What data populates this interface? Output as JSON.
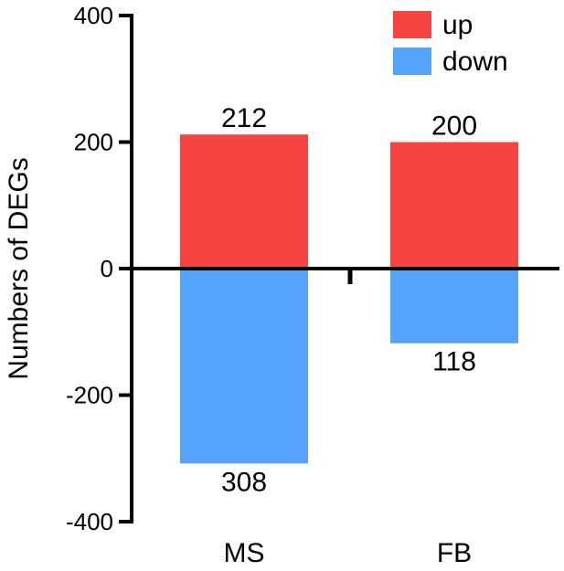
{
  "chart_data": {
    "type": "bar",
    "categories": [
      "MS",
      "FB"
    ],
    "series": [
      {
        "name": "up",
        "values": [
          212,
          200
        ],
        "labels": [
          "212",
          "200"
        ],
        "color": "#f84343"
      },
      {
        "name": "down",
        "values": [
          -308,
          -118
        ],
        "labels": [
          "308",
          "118"
        ],
        "color": "#55a2fb"
      }
    ],
    "title": "",
    "xlabel": "",
    "ylabel": "Numbers of DEGs",
    "ylim": [
      -400,
      400
    ],
    "yticks": [
      400,
      200,
      0,
      -200,
      -400
    ],
    "ytick_labels": [
      "400",
      "200",
      "0",
      "-200",
      "-400"
    ],
    "grid": false,
    "legend": "top-right",
    "stacked": true
  }
}
